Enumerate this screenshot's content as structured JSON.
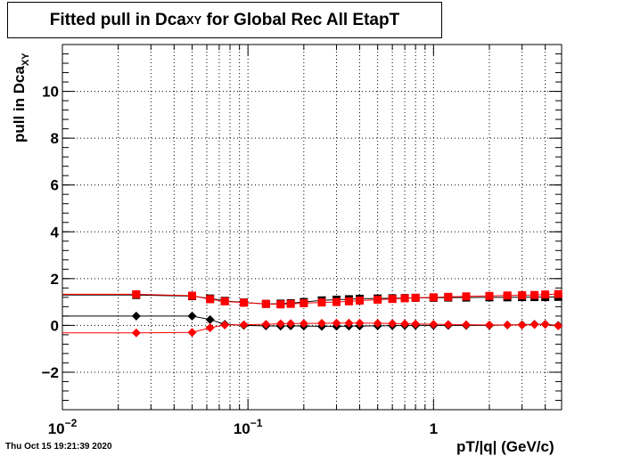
{
  "title": {
    "main": "Fitted pull in Dca",
    "sub": "XY",
    "rest": " for Global Rec All EtapT"
  },
  "footer": "Thu Oct 15 19:21:39 2020",
  "chart_data": {
    "type": "scatter",
    "xlabel": "pT/|q| (GeV/c)",
    "ylabel_main": "pull in Dca",
    "ylabel_sub": "XY",
    "xscale": "log",
    "xlim": [
      0.01,
      4.9
    ],
    "ylim": [
      -3.6,
      12.0
    ],
    "grid": true,
    "x_ticks": [
      {
        "value": 0.01,
        "base": "10",
        "exp": "−2"
      },
      {
        "value": 0.1,
        "base": "10",
        "exp": "−1"
      },
      {
        "value": 1,
        "base": "1",
        "exp": ""
      }
    ],
    "y_ticks": [
      {
        "value": -2,
        "label": "−2"
      },
      {
        "value": 0,
        "label": "0"
      },
      {
        "value": 2,
        "label": "2"
      },
      {
        "value": 4,
        "label": "4"
      },
      {
        "value": 6,
        "label": "6"
      },
      {
        "value": 8,
        "label": "8"
      },
      {
        "value": 10,
        "label": "10"
      }
    ],
    "series": [
      {
        "marker": "square",
        "color": "#000000",
        "x": [
          0.025,
          0.05,
          0.0625,
          0.075,
          0.095,
          0.125,
          0.15,
          0.17,
          0.2,
          0.25,
          0.3,
          0.35,
          0.4,
          0.5,
          0.6,
          0.7,
          0.8,
          1.0,
          1.2,
          1.5,
          2.0,
          2.5,
          3.0,
          3.5,
          4.0,
          4.7
        ],
        "y": [
          1.3,
          1.25,
          1.15,
          1.05,
          0.98,
          0.92,
          0.93,
          0.95,
          1.0,
          1.07,
          1.1,
          1.12,
          1.14,
          1.15,
          1.16,
          1.17,
          1.18,
          1.18,
          1.19,
          1.19,
          1.2,
          1.2,
          1.21,
          1.21,
          1.21,
          1.22
        ]
      },
      {
        "marker": "square",
        "color": "#ff0000",
        "x": [
          0.025,
          0.05,
          0.0625,
          0.075,
          0.095,
          0.125,
          0.15,
          0.17,
          0.2,
          0.25,
          0.3,
          0.35,
          0.4,
          0.5,
          0.6,
          0.7,
          0.8,
          1.0,
          1.2,
          1.5,
          2.0,
          2.5,
          3.0,
          3.5,
          4.0,
          4.7
        ],
        "y": [
          1.33,
          1.27,
          1.12,
          1.03,
          0.97,
          0.92,
          0.9,
          0.92,
          0.95,
          0.98,
          1.0,
          1.03,
          1.06,
          1.1,
          1.13,
          1.16,
          1.18,
          1.2,
          1.22,
          1.24,
          1.26,
          1.28,
          1.29,
          1.3,
          1.32,
          1.34
        ]
      },
      {
        "marker": "diamond",
        "color": "#000000",
        "x": [
          0.025,
          0.05,
          0.0625,
          0.075,
          0.095,
          0.125,
          0.15,
          0.17,
          0.2,
          0.25,
          0.3,
          0.35,
          0.4,
          0.5,
          0.6,
          0.7,
          0.8,
          1.0,
          1.2,
          1.5,
          2.0,
          2.5,
          3.0,
          3.5,
          4.0,
          4.7
        ],
        "y": [
          0.4,
          0.4,
          0.25,
          0.05,
          0.0,
          -0.02,
          -0.03,
          -0.02,
          -0.03,
          -0.04,
          -0.04,
          -0.03,
          -0.03,
          -0.02,
          -0.01,
          0.0,
          0.0,
          0.0,
          0.0,
          0.0,
          0.0,
          0.02,
          0.03,
          0.05,
          0.05,
          0.0
        ]
      },
      {
        "marker": "diamond",
        "color": "#ff0000",
        "x": [
          0.025,
          0.05,
          0.0625,
          0.075,
          0.095,
          0.125,
          0.15,
          0.17,
          0.2,
          0.25,
          0.3,
          0.35,
          0.4,
          0.5,
          0.6,
          0.7,
          0.8,
          1.0,
          1.2,
          1.5,
          2.0,
          2.5,
          3.0,
          3.5,
          4.0,
          4.7
        ],
        "y": [
          -0.32,
          -0.3,
          -0.1,
          0.02,
          0.03,
          0.05,
          0.07,
          0.08,
          0.08,
          0.09,
          0.1,
          0.1,
          0.1,
          0.09,
          0.08,
          0.07,
          0.06,
          0.05,
          0.04,
          0.03,
          0.02,
          0.02,
          0.02,
          0.04,
          0.05,
          -0.02
        ]
      }
    ]
  }
}
